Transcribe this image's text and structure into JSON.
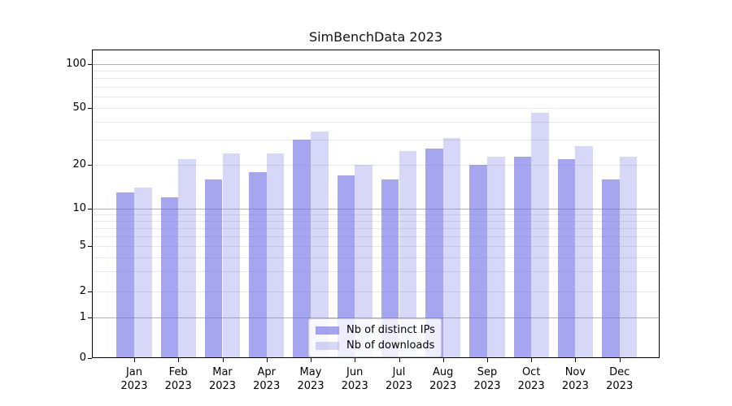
{
  "figure": {
    "background": "#ffffff"
  },
  "chart_data": {
    "type": "bar",
    "title": "SimBenchData 2023",
    "categories": [
      "Jan",
      "Feb",
      "Mar",
      "Apr",
      "May",
      "Jun",
      "Jul",
      "Aug",
      "Sep",
      "Oct",
      "Nov",
      "Dec"
    ],
    "category_year": "2023",
    "series": [
      {
        "name": "Nb of distinct IPs",
        "color": "rgba(110,110,230,0.62)",
        "color_flat": "#a5a5f4",
        "values": [
          13,
          12,
          16,
          18,
          30,
          17,
          16,
          26,
          20,
          23,
          22,
          16
        ]
      },
      {
        "name": "Nb of downloads",
        "color": "rgba(110,110,230,0.28)",
        "color_flat": "#d6d6f8",
        "values": [
          14,
          22,
          24,
          24,
          34,
          20,
          25,
          31,
          23,
          46,
          27,
          23
        ]
      }
    ],
    "xlabel": "",
    "ylabel": "",
    "yscale": "symlog",
    "ylim": [
      0,
      125
    ],
    "ytick_labels": [
      "100",
      "50",
      "20",
      "10",
      "5",
      "2",
      "1",
      "0"
    ],
    "ytick_values": [
      100,
      50,
      20,
      10,
      5,
      2,
      1,
      0
    ],
    "minor_grid_values": [
      2,
      3,
      4,
      5,
      6,
      7,
      8,
      9,
      20,
      30,
      40,
      50,
      60,
      70,
      80,
      90
    ],
    "major_grid_values": [
      1,
      10,
      100
    ],
    "grid": true,
    "legend_position": "lower center"
  },
  "colors": {
    "grid_minor": "#e7e7e7",
    "grid_major": "#b2b2b2",
    "spine": "#000000",
    "legend_border": "#c9c9c9",
    "text": "#000000"
  }
}
